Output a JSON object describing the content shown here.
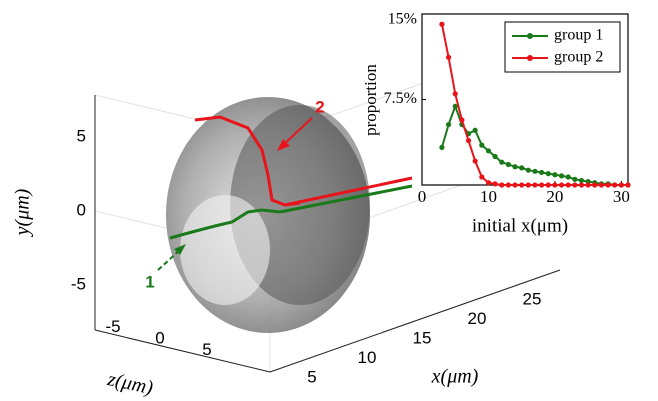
{
  "chart_data": [
    {
      "type": "3d",
      "xlabel": "x(μm)",
      "ylabel": "y(μm)",
      "zlabel": "z(μm)",
      "xticks": [
        5,
        10,
        15,
        20,
        25
      ],
      "yticks": [
        5,
        0,
        -5
      ],
      "zticks": [
        -5,
        0,
        5
      ],
      "annotations": [
        "1",
        "2"
      ]
    },
    {
      "type": "line",
      "xlabel": "initial x(μm)",
      "ylabel": "proportion",
      "xlim": [
        0,
        31
      ],
      "ylim": [
        0,
        15
      ],
      "xticks": [
        0,
        10,
        20,
        30
      ],
      "yticks": [
        {
          "value": 7.5,
          "label": "7.5%"
        },
        {
          "value": 15,
          "label": "15%"
        }
      ],
      "x": [
        3,
        4,
        5,
        6,
        7,
        8,
        9,
        10,
        11,
        12,
        13,
        14,
        15,
        16,
        17,
        18,
        19,
        20,
        21,
        22,
        23,
        24,
        25,
        26,
        27,
        28,
        29,
        30,
        31
      ],
      "series": [
        {
          "name": "group 1",
          "color": "#1a7a1a",
          "values": [
            3.3,
            5.3,
            6.9,
            5.3,
            4.5,
            4.8,
            3.5,
            3.0,
            2.5,
            2.0,
            1.8,
            1.6,
            1.5,
            1.3,
            1.2,
            1.1,
            1.0,
            0.9,
            0.8,
            0.7,
            0.5,
            0.4,
            0.3,
            0.2,
            0.1,
            0.1,
            0,
            0,
            0
          ]
        },
        {
          "name": "group 2",
          "color": "#e8141a",
          "values": [
            14.1,
            11.2,
            8.0,
            5.7,
            3.9,
            2.1,
            0.7,
            0.2,
            0.1,
            0,
            0,
            0,
            0,
            0,
            0,
            0,
            0,
            0,
            0,
            0,
            0,
            0,
            0,
            0,
            0,
            0,
            0,
            0,
            0
          ]
        }
      ],
      "legend": "upper right"
    }
  ]
}
